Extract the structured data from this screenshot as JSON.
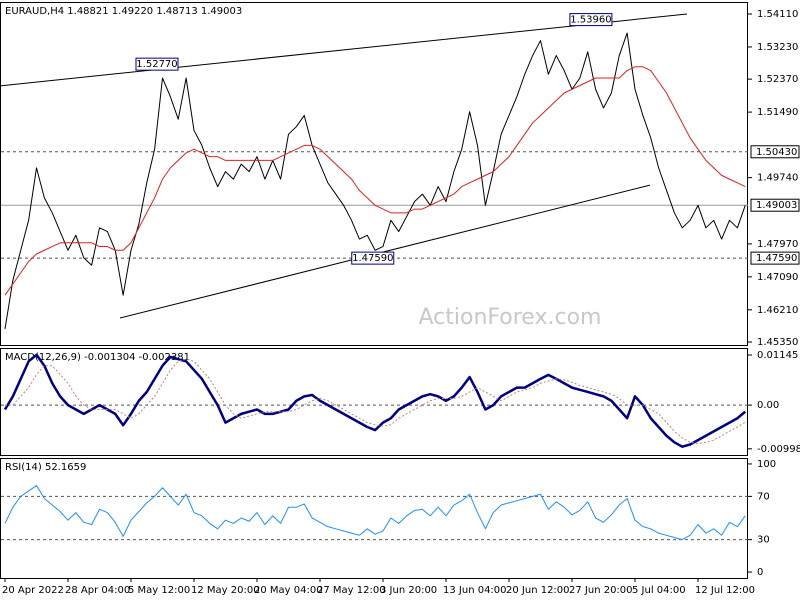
{
  "chart_data": [
    {
      "type": "line",
      "title": "EURAUD,H4  1.48821 1.49220 1.48713 1.49003",
      "watermark": "ActionForex.com",
      "categories": [
        "20 Apr 2022",
        null,
        null,
        null,
        null,
        null,
        null,
        null,
        "28 Apr 04:00",
        null,
        null,
        null,
        null,
        null,
        null,
        null,
        "5 May 12:00",
        null,
        null,
        null,
        null,
        null,
        null,
        null,
        "12 May 20:00",
        null,
        null,
        null,
        null,
        null,
        null,
        null,
        "20 May 04:00",
        null,
        null,
        null,
        null,
        null,
        null,
        null,
        "27 May 12:00",
        null,
        null,
        null,
        null,
        null,
        null,
        null,
        "3 Jun 20:00",
        null,
        null,
        null,
        null,
        null,
        null,
        null,
        "13 Jun 04:00",
        null,
        null,
        null,
        null,
        null,
        null,
        null,
        "20 Jun 12:00",
        null,
        null,
        null,
        null,
        null,
        null,
        null,
        "27 Jun 20:00",
        null,
        null,
        null,
        null,
        null,
        null,
        null,
        "5 Jul 04:00",
        null,
        null,
        null,
        null,
        null,
        null,
        null,
        "12 Jul 12:00",
        null,
        null,
        null,
        null,
        null,
        null
      ],
      "ylim": [
        1.4527,
        1.5443
      ],
      "yticks": [
        {
          "value": 1.5411,
          "label": "1.54110"
        },
        {
          "value": 1.5323,
          "label": "1.53230"
        },
        {
          "value": 1.5237,
          "label": "1.52370"
        },
        {
          "value": 1.5149,
          "label": "1.51490"
        },
        {
          "value": 1.4974,
          "label": "1.49740"
        },
        {
          "value": 1.4797,
          "label": "1.47970"
        },
        {
          "value": 1.4709,
          "label": "1.47090"
        },
        {
          "value": 1.4621,
          "label": "1.46210"
        },
        {
          "value": 1.4535,
          "label": "1.45350"
        }
      ],
      "levels": [
        {
          "value": 1.5043,
          "label": "1.50430",
          "dashed": true
        },
        {
          "value": 1.49003,
          "label": "1.49003",
          "dashed": false
        },
        {
          "value": 1.4759,
          "label": "1.47590",
          "dashed": true
        }
      ],
      "annotations": [
        {
          "label": "1.52770",
          "value": 1.5277,
          "x": 19.3
        },
        {
          "label": "1.53960",
          "value": 1.5396,
          "x": 74.4
        },
        {
          "label": "1.47590",
          "value": 1.4759,
          "x": 46.7
        }
      ],
      "trend_lines": [
        {
          "x": [
            -0.6,
            86.6
          ],
          "values": [
            1.5219,
            1.5411
          ]
        },
        {
          "x": [
            14.6,
            81.9
          ],
          "values": [
            1.4599,
            1.4954
          ]
        }
      ],
      "series": [
        {
          "color": "#000000",
          "width": 1,
          "values": [
            1.457,
            1.47,
            1.478,
            1.486,
            1.5,
            1.492,
            1.488,
            1.483,
            1.478,
            1.482,
            1.476,
            1.474,
            1.484,
            1.483,
            1.478,
            1.466,
            1.478,
            1.485,
            1.496,
            1.505,
            1.524,
            1.519,
            1.513,
            1.524,
            1.51,
            1.506,
            1.5,
            1.495,
            1.499,
            1.497,
            1.501,
            1.499,
            1.503,
            1.497,
            1.502,
            1.497,
            1.509,
            1.511,
            1.514,
            1.506,
            1.501,
            1.496,
            1.493,
            1.49,
            1.486,
            1.481,
            1.482,
            1.478,
            1.479,
            1.486,
            1.483,
            1.487,
            1.491,
            1.493,
            1.49,
            1.495,
            1.491,
            1.499,
            1.505,
            1.515,
            1.506,
            1.49,
            1.499,
            1.509,
            1.514,
            1.519,
            1.525,
            1.53,
            1.534,
            1.525,
            1.53,
            1.526,
            1.521,
            1.524,
            1.531,
            1.521,
            1.516,
            1.52,
            1.53,
            1.536,
            1.521,
            1.514,
            1.508,
            1.5,
            1.494,
            1.488,
            1.484,
            1.486,
            1.49,
            1.484,
            1.486,
            1.481,
            1.486,
            1.484,
            1.49
          ]
        },
        {
          "color": "#e02020",
          "width": 1,
          "values": [
            1.466,
            1.469,
            1.472,
            1.475,
            1.477,
            1.478,
            1.479,
            1.48,
            1.48,
            1.48,
            1.48,
            1.48,
            1.479,
            1.479,
            1.478,
            1.478,
            1.48,
            1.484,
            1.488,
            1.492,
            1.497,
            1.5,
            1.502,
            1.504,
            1.505,
            1.504,
            1.503,
            1.503,
            1.502,
            1.502,
            1.502,
            1.502,
            1.502,
            1.502,
            1.502,
            1.503,
            1.504,
            1.505,
            1.506,
            1.506,
            1.505,
            1.503,
            1.501,
            1.499,
            1.497,
            1.494,
            1.492,
            1.49,
            1.489,
            1.488,
            1.488,
            1.488,
            1.489,
            1.489,
            1.49,
            1.491,
            1.492,
            1.493,
            1.495,
            1.496,
            1.497,
            1.498,
            1.499,
            1.501,
            1.503,
            1.506,
            1.509,
            1.512,
            1.514,
            1.516,
            1.518,
            1.52,
            1.521,
            1.522,
            1.523,
            1.524,
            1.524,
            1.524,
            1.524,
            1.526,
            1.527,
            1.527,
            1.526,
            1.523,
            1.52,
            1.516,
            1.512,
            1.508,
            1.505,
            1.502,
            1.5,
            1.498,
            1.497,
            1.496,
            1.495
          ]
        }
      ]
    },
    {
      "type": "line",
      "title": "MACD(12,26,9) -0.001304 -0.002381",
      "ylim": [
        -0.0114,
        0.01305
      ],
      "yticks": [
        0.01145,
        {
          "value": 0,
          "label": "0.00"
        },
        -0.009985
      ],
      "levels": [
        {
          "value": 0,
          "dashed": true
        }
      ],
      "series": [
        {
          "color": "#000080",
          "width": 2.5,
          "values": [
            -0.001,
            0.002,
            0.006,
            0.01,
            0.0115,
            0.009,
            0.005,
            0.002,
            0.0,
            -0.001,
            -0.002,
            -0.001,
            0.0,
            -0.001,
            -0.002,
            -0.0046,
            -0.002,
            0.001,
            0.003,
            0.006,
            0.009,
            0.011,
            0.0105,
            0.01,
            0.008,
            0.006,
            0.003,
            0.0,
            -0.004,
            -0.003,
            -0.002,
            -0.0015,
            -0.001,
            -0.002,
            -0.002,
            -0.0015,
            -0.001,
            0.001,
            0.002,
            0.0023,
            0.001,
            0.0,
            -0.001,
            -0.002,
            -0.003,
            -0.004,
            -0.005,
            -0.0057,
            -0.004,
            -0.003,
            -0.001,
            0.0,
            0.001,
            0.002,
            0.0025,
            0.002,
            0.001,
            0.002,
            0.004,
            0.0064,
            0.003,
            -0.001,
            0.0,
            0.002,
            0.003,
            0.004,
            0.004,
            0.005,
            0.006,
            0.0069,
            0.006,
            0.005,
            0.004,
            0.0035,
            0.003,
            0.0025,
            0.002,
            0.001,
            -0.001,
            -0.003,
            0.002,
            0.0,
            -0.003,
            -0.005,
            -0.007,
            -0.0085,
            -0.0095,
            -0.009,
            -0.008,
            -0.007,
            -0.006,
            -0.005,
            -0.004,
            -0.003,
            -0.0015
          ]
        },
        {
          "color": "#c08080",
          "width": 1,
          "dashed": true,
          "values": [
            0.0,
            0.0,
            0.002,
            0.004,
            0.007,
            0.009,
            0.009,
            0.007,
            0.005,
            0.002,
            0.0,
            -0.001,
            -0.001,
            -0.001,
            -0.001,
            -0.002,
            -0.003,
            -0.002,
            0.0,
            0.002,
            0.005,
            0.008,
            0.01,
            0.0105,
            0.01,
            0.008,
            0.006,
            0.003,
            0.0,
            -0.002,
            -0.003,
            -0.0025,
            -0.002,
            -0.0015,
            -0.0015,
            -0.0015,
            -0.0015,
            -0.001,
            0.0,
            0.001,
            0.0015,
            0.001,
            0.0,
            -0.001,
            -0.002,
            -0.003,
            -0.004,
            -0.0045,
            -0.0048,
            -0.0045,
            -0.003,
            -0.002,
            -0.001,
            0.0,
            0.001,
            0.0015,
            0.0015,
            0.0015,
            0.002,
            0.003,
            0.004,
            0.003,
            0.002,
            0.001,
            0.002,
            0.003,
            0.0035,
            0.004,
            0.005,
            0.0055,
            0.006,
            0.0058,
            0.0052,
            0.0045,
            0.004,
            0.0035,
            0.003,
            0.0025,
            0.0015,
            0.0,
            0.0,
            0.0,
            -0.001,
            -0.002,
            -0.004,
            -0.006,
            -0.0075,
            -0.0085,
            -0.0088,
            -0.0085,
            -0.008,
            -0.007,
            -0.006,
            -0.005,
            -0.0039
          ]
        }
      ]
    },
    {
      "type": "line",
      "title": "RSI(14) 52.1659",
      "ylim": [
        -5.5,
        105.5
      ],
      "yticks": [
        100,
        70,
        30,
        0
      ],
      "levels": [
        {
          "value": 70,
          "dashed": true
        },
        {
          "value": 30,
          "dashed": true
        }
      ],
      "series": [
        {
          "color": "#1e90ff",
          "width": 1,
          "values": [
            45,
            60,
            70,
            75,
            80,
            68,
            62,
            56,
            48,
            55,
            46,
            44,
            58,
            55,
            46,
            33,
            48,
            56,
            64,
            70,
            78,
            70,
            62,
            72,
            55,
            52,
            45,
            40,
            48,
            45,
            50,
            47,
            55,
            44,
            52,
            45,
            60,
            60,
            63,
            50,
            46,
            42,
            40,
            38,
            36,
            34,
            40,
            35,
            38,
            50,
            45,
            52,
            57,
            58,
            52,
            60,
            52,
            62,
            66,
            72,
            55,
            40,
            55,
            62,
            64,
            66,
            68,
            70,
            72,
            58,
            65,
            60,
            53,
            57,
            65,
            50,
            46,
            53,
            62,
            68,
            48,
            42,
            40,
            36,
            34,
            32,
            30,
            34,
            44,
            36,
            40,
            34,
            46,
            42,
            52
          ]
        }
      ]
    }
  ]
}
